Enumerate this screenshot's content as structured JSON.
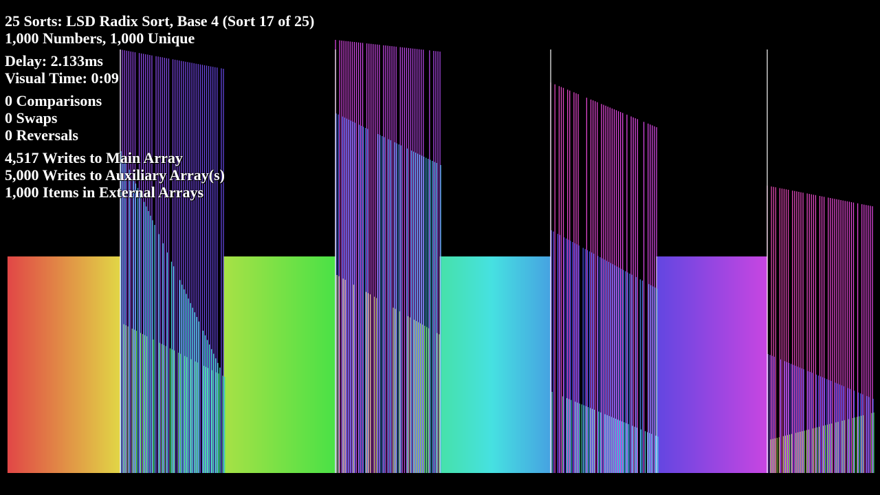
{
  "stats": {
    "title": "25 Sorts: LSD Radix Sort, Base 4 (Sort 17 of 25)",
    "numbers": "1,000 Numbers, 1,000 Unique",
    "delay": "Delay: 2.133ms",
    "visual_time": "Visual Time: 0:09",
    "comparisons": "0 Comparisons",
    "swaps": "0 Swaps",
    "reversals": "0 Reversals",
    "main_writes": "4,517 Writes to Main Array",
    "aux_writes": "5,000 Writes to Auxiliary Array(s)",
    "external_items": "1,000 Items in External Arrays"
  },
  "visualization": {
    "array_length": 1000,
    "radix_base": 4,
    "colors": {
      "background": "#000000",
      "text": "#ffffff"
    }
  }
}
